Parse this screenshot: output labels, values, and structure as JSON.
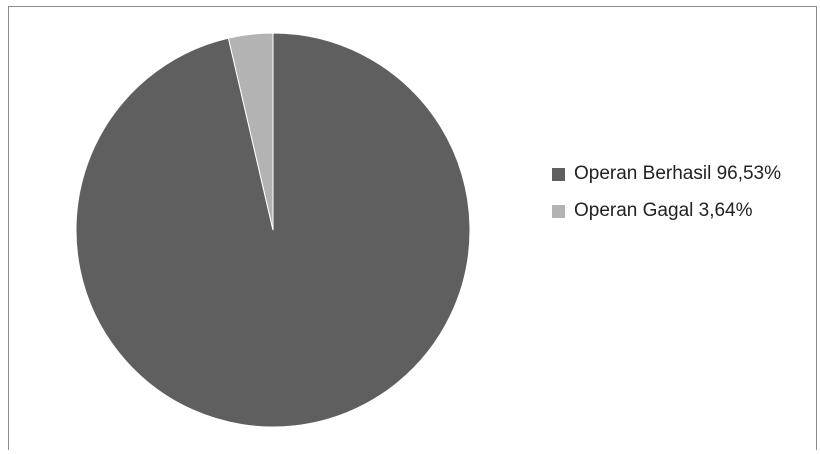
{
  "chart_data": {
    "type": "pie",
    "title": "",
    "legend_placement": "right",
    "slices": [
      {
        "label": "Operan Berhasil 96,53%",
        "value": 96.53,
        "color": "#5f5f5f"
      },
      {
        "label": "Operan Gagal 3,64%",
        "value": 3.64,
        "color": "#b3b3b3"
      }
    ]
  }
}
